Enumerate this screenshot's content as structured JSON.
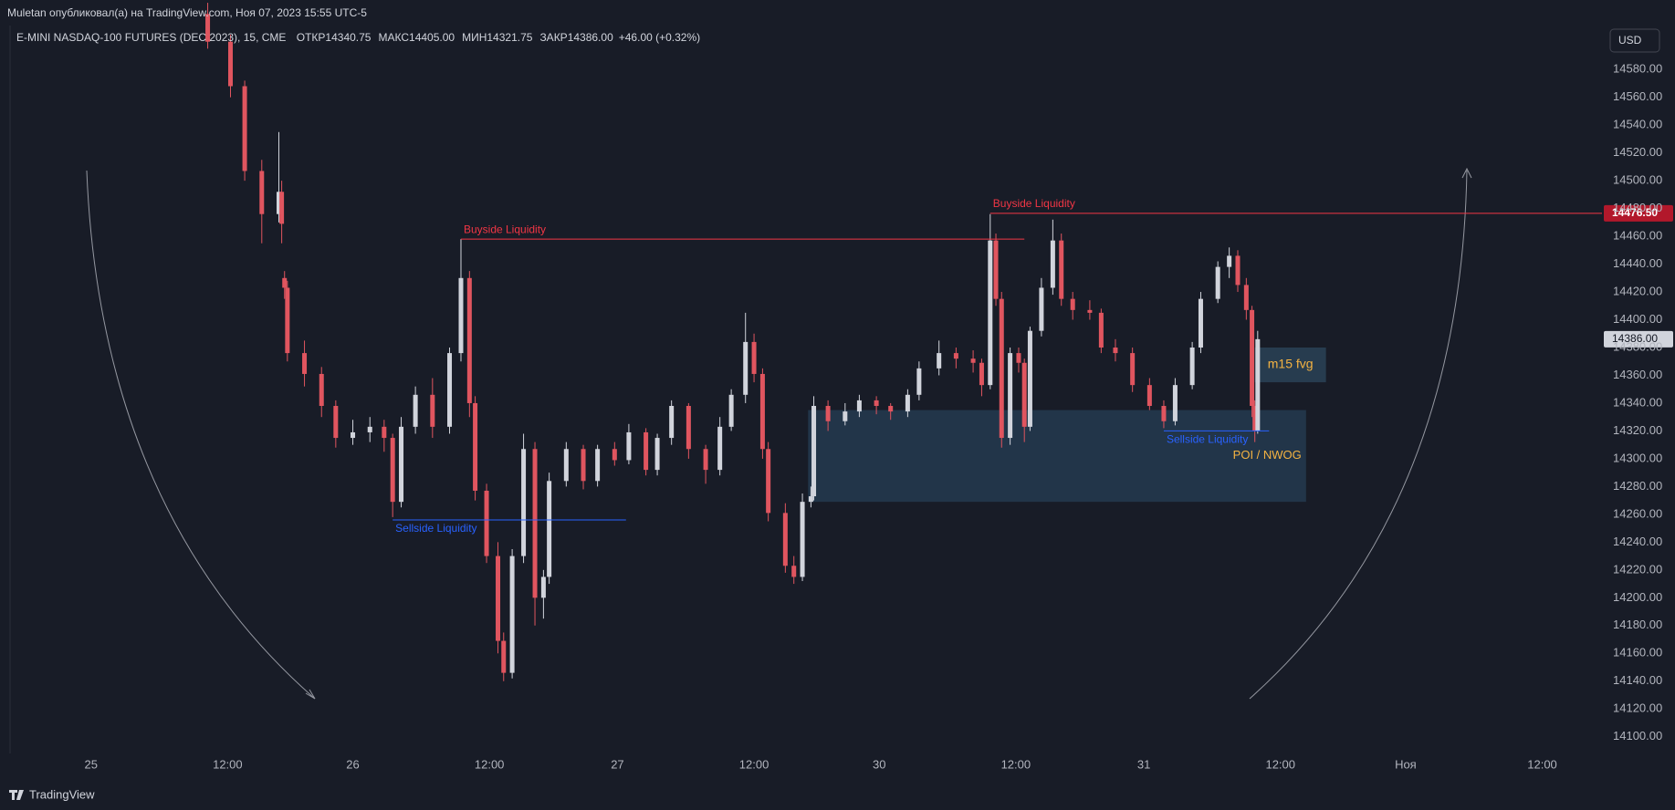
{
  "published": "Muletan опубликовал(а) на TradingView.com, Ноя 07, 2023 15:55 UTC-5",
  "header": {
    "symbol": "E-MINI NASDAQ-100 FUTURES (DEC 2023), 15, CME",
    "fields": [
      {
        "name": "ОТКР",
        "value": "14340.75"
      },
      {
        "name": "МАКС",
        "value": "14405.00"
      },
      {
        "name": "МИН",
        "value": "14321.75"
      },
      {
        "name": "ЗАКР",
        "value": "14386.00"
      }
    ],
    "change": "+46.00 (+0.32%)"
  },
  "currency": "USD",
  "brand": "TradingView",
  "chart_data": {
    "type": "candlestick",
    "up_color": "#d1d4dc",
    "down_color": "#e0555f",
    "grid": false,
    "xlim": [
      0,
      563
    ],
    "ylim": [
      14088,
      14630
    ],
    "xticks": [
      {
        "value": 32,
        "label": "25"
      },
      {
        "value": 80,
        "label": "12:00"
      },
      {
        "value": 124,
        "label": "26"
      },
      {
        "value": 172,
        "label": "12:00"
      },
      {
        "value": 217,
        "label": "27"
      },
      {
        "value": 265,
        "label": "12:00"
      },
      {
        "value": 309,
        "label": "30"
      },
      {
        "value": 357,
        "label": "12:00"
      },
      {
        "value": 402,
        "label": "31"
      },
      {
        "value": 450,
        "label": "12:00"
      },
      {
        "value": 494,
        "label": "Ноя"
      },
      {
        "value": 542,
        "label": "12:00"
      }
    ],
    "yticks": [
      {
        "value": 14100,
        "label": "14100.00"
      },
      {
        "value": 14120,
        "label": "14120.00"
      },
      {
        "value": 14140,
        "label": "14140.00"
      },
      {
        "value": 14160,
        "label": "14160.00"
      },
      {
        "value": 14180,
        "label": "14180.00"
      },
      {
        "value": 14200,
        "label": "14200.00"
      },
      {
        "value": 14220,
        "label": "14220.00"
      },
      {
        "value": 14240,
        "label": "14240.00"
      },
      {
        "value": 14260,
        "label": "14260.00"
      },
      {
        "value": 14280,
        "label": "14280.00"
      },
      {
        "value": 14300,
        "label": "14300.00"
      },
      {
        "value": 14320,
        "label": "14320.00"
      },
      {
        "value": 14340,
        "label": "14340.00"
      },
      {
        "value": 14360,
        "label": "14360.00"
      },
      {
        "value": 14380,
        "label": "14380.00"
      },
      {
        "value": 14400,
        "label": "14400.00"
      },
      {
        "value": 14420,
        "label": "14420.00"
      },
      {
        "value": 14440,
        "label": "14440.00"
      },
      {
        "value": 14460,
        "label": "14460.00"
      },
      {
        "value": 14480,
        "label": "14480.00"
      },
      {
        "value": 14500,
        "label": "14500.00"
      },
      {
        "value": 14520,
        "label": "14520.00"
      },
      {
        "value": 14540,
        "label": "14540.00"
      },
      {
        "value": 14560,
        "label": "14560.00"
      },
      {
        "value": 14580,
        "label": "14580.00"
      }
    ],
    "x": [
      73,
      81,
      86,
      92,
      98,
      99,
      100,
      101,
      107,
      113,
      118,
      124,
      130,
      135,
      138,
      141,
      146,
      152,
      158,
      162,
      165,
      167,
      171,
      175,
      177,
      180,
      184,
      188,
      191,
      193,
      199,
      205,
      210,
      216,
      221,
      227,
      231,
      236,
      242,
      248,
      253,
      257,
      262,
      265,
      268,
      270,
      276,
      279,
      282,
      285,
      286,
      291,
      297,
      302,
      308,
      313,
      319,
      323,
      330,
      336,
      342,
      345,
      348,
      350,
      352,
      355,
      358,
      360,
      362,
      366,
      370,
      373,
      377,
      383,
      387,
      392,
      398,
      404,
      409,
      413,
      419,
      422,
      428,
      432,
      435,
      438,
      440,
      441,
      442
    ],
    "open": [
      14620,
      14600,
      14568,
      14507,
      14476,
      14492,
      14430,
      14423,
      14376,
      14361,
      14338,
      14315,
      14319,
      14323,
      14315,
      14269,
      14323,
      14346,
      14323,
      14376,
      14430,
      14340,
      14277,
      14230,
      14169,
      14146,
      14230,
      14307,
      14200,
      14215,
      14284,
      14307,
      14284,
      14307,
      14299,
      14319,
      14292,
      14315,
      14338,
      14307,
      14292,
      14323,
      14346,
      14384,
      14361,
      14307,
      14261,
      14223,
      14215,
      14269,
      14273,
      14338,
      14327,
      14334,
      14342,
      14338,
      14334,
      14346,
      14365,
      14376,
      14372,
      14369,
      14353,
      14457,
      14415,
      14315,
      14376,
      14369,
      14323,
      14392,
      14423,
      14457,
      14415,
      14407,
      14405,
      14380,
      14376,
      14353,
      14338,
      14327,
      14353,
      14380,
      14415,
      14438,
      14446,
      14425,
      14407,
      14338,
      14320
    ],
    "high": [
      14628,
      14605,
      14572,
      14515,
      14535,
      14500,
      14435,
      14428,
      14385,
      14366,
      14342,
      14328,
      14330,
      14328,
      14318,
      14330,
      14352,
      14358,
      14380,
      14458,
      14435,
      14345,
      14282,
      14240,
      14175,
      14235,
      14318,
      14312,
      14220,
      14290,
      14312,
      14310,
      14310,
      14312,
      14325,
      14322,
      14318,
      14342,
      14340,
      14310,
      14330,
      14350,
      14405,
      14390,
      14365,
      14312,
      14268,
      14230,
      14275,
      14280,
      14345,
      14342,
      14340,
      14346,
      14345,
      14340,
      14350,
      14370,
      14385,
      14380,
      14378,
      14372,
      14476,
      14462,
      14420,
      14380,
      14380,
      14372,
      14395,
      14430,
      14472,
      14462,
      14420,
      14414,
      14408,
      14386,
      14380,
      14358,
      14342,
      14358,
      14384,
      14420,
      14442,
      14452,
      14450,
      14430,
      14410,
      14342,
      14392
    ],
    "low": [
      14595,
      14560,
      14500,
      14455,
      14470,
      14455,
      14415,
      14370,
      14352,
      14330,
      14308,
      14310,
      14312,
      14305,
      14258,
      14265,
      14318,
      14315,
      14318,
      14370,
      14330,
      14270,
      14225,
      14160,
      14140,
      14142,
      14225,
      14180,
      14185,
      14210,
      14280,
      14278,
      14280,
      14295,
      14296,
      14288,
      14288,
      14310,
      14300,
      14282,
      14288,
      14320,
      14340,
      14355,
      14300,
      14255,
      14218,
      14210,
      14212,
      14265,
      14270,
      14320,
      14324,
      14330,
      14332,
      14328,
      14330,
      14342,
      14360,
      14365,
      14362,
      14345,
      14350,
      14410,
      14308,
      14310,
      14362,
      14312,
      14320,
      14388,
      14418,
      14410,
      14400,
      14400,
      14376,
      14370,
      14348,
      14335,
      14322,
      14324,
      14350,
      14376,
      14412,
      14430,
      14420,
      14400,
      14330,
      14312,
      14318
    ],
    "close": [
      14600,
      14568,
      14507,
      14476,
      14492,
      14469,
      14423,
      14376,
      14361,
      14338,
      14315,
      14319,
      14323,
      14315,
      14269,
      14323,
      14346,
      14323,
      14376,
      14430,
      14340,
      14277,
      14230,
      14169,
      14146,
      14230,
      14307,
      14200,
      14215,
      14284,
      14307,
      14284,
      14307,
      14299,
      14319,
      14292,
      14315,
      14338,
      14307,
      14292,
      14323,
      14346,
      14384,
      14361,
      14307,
      14261,
      14223,
      14215,
      14269,
      14273,
      14338,
      14327,
      14334,
      14342,
      14338,
      14334,
      14346,
      14365,
      14376,
      14372,
      14369,
      14353,
      14457,
      14415,
      14315,
      14376,
      14369,
      14323,
      14392,
      14423,
      14457,
      14415,
      14407,
      14405,
      14380,
      14376,
      14353,
      14338,
      14327,
      14353,
      14380,
      14415,
      14438,
      14446,
      14425,
      14407,
      14338,
      14320,
      14386
    ],
    "annotations": [
      {
        "label": "Buyside Liquidity",
        "level": 14458,
        "from": 162,
        "to": 360,
        "color": "#f23645"
      },
      {
        "label": "Buyside Liquidity",
        "level": 14476.5,
        "from": 348,
        "to": 563,
        "color": "#f23645",
        "price_label": "14476.50"
      },
      {
        "label": "Sellside Liquidity",
        "level": 14256,
        "from": 138,
        "to": 220,
        "color": "#2962ff"
      },
      {
        "label": "Sellside Liquidity",
        "level": 14320,
        "from": 409,
        "to": 446,
        "color": "#2962ff"
      }
    ],
    "zones": [
      {
        "label": "POI / NWOG",
        "from": 284,
        "to": 459,
        "low": 14269,
        "high": 14335,
        "color": "#243a50",
        "text_color": "#f5b342"
      },
      {
        "label": "m15 fvg",
        "from": 441,
        "to": 466,
        "low": 14355,
        "high": 14380,
        "color": "#2a4257",
        "text_color": "#f5b342"
      }
    ],
    "last_price": {
      "value": 14386,
      "label": "14386.00"
    }
  }
}
